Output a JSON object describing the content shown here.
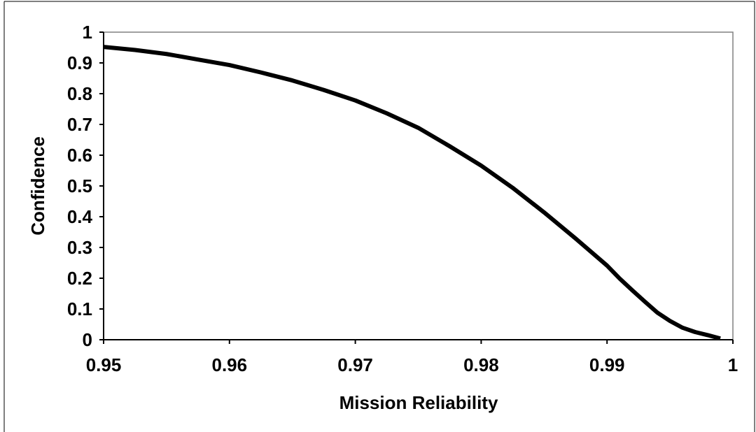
{
  "chart_data": {
    "type": "line",
    "title": "",
    "xlabel": "Mission Reliability",
    "ylabel": "Confidence",
    "xlim": [
      0.95,
      1
    ],
    "ylim": [
      0,
      1
    ],
    "x_ticks": [
      "0.95",
      "0.96",
      "0.97",
      "0.98",
      "0.99",
      "1"
    ],
    "y_ticks": [
      "0",
      "0.1",
      "0.2",
      "0.3",
      "0.4",
      "0.5",
      "0.6",
      "0.7",
      "0.8",
      "0.9",
      "1"
    ],
    "grid": false,
    "legend": "none",
    "series": [
      {
        "color": "#000000",
        "x": [
          0.95,
          0.9525,
          0.955,
          0.9575,
          0.96,
          0.9625,
          0.965,
          0.9675,
          0.97,
          0.9725,
          0.975,
          0.9775,
          0.98,
          0.9825,
          0.985,
          0.9875,
          0.99,
          0.991,
          0.992,
          0.993,
          0.994,
          0.995,
          0.996,
          0.997,
          0.998,
          0.999
        ],
        "y": [
          0.952,
          0.942,
          0.929,
          0.911,
          0.893,
          0.869,
          0.843,
          0.812,
          0.778,
          0.736,
          0.689,
          0.629,
          0.566,
          0.494,
          0.414,
          0.329,
          0.241,
          0.199,
          0.161,
          0.124,
          0.088,
          0.061,
          0.039,
          0.025,
          0.015,
          0.004
        ]
      }
    ]
  }
}
